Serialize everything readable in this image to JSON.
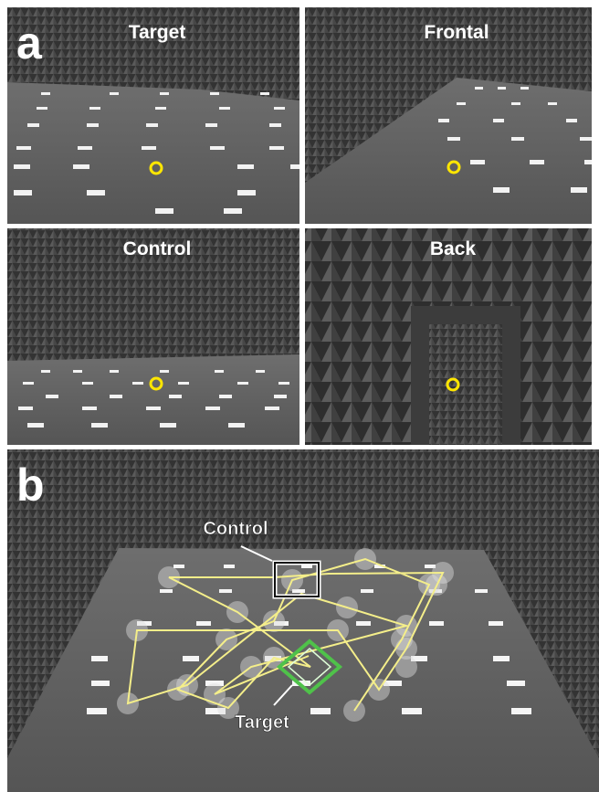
{
  "panel_a": {
    "label": "a",
    "views": [
      {
        "title": "Target"
      },
      {
        "title": "Frontal"
      },
      {
        "title": "Control"
      },
      {
        "title": "Back"
      }
    ]
  },
  "panel_b": {
    "label": "b",
    "control_label": "Control",
    "target_label": "Target"
  }
}
